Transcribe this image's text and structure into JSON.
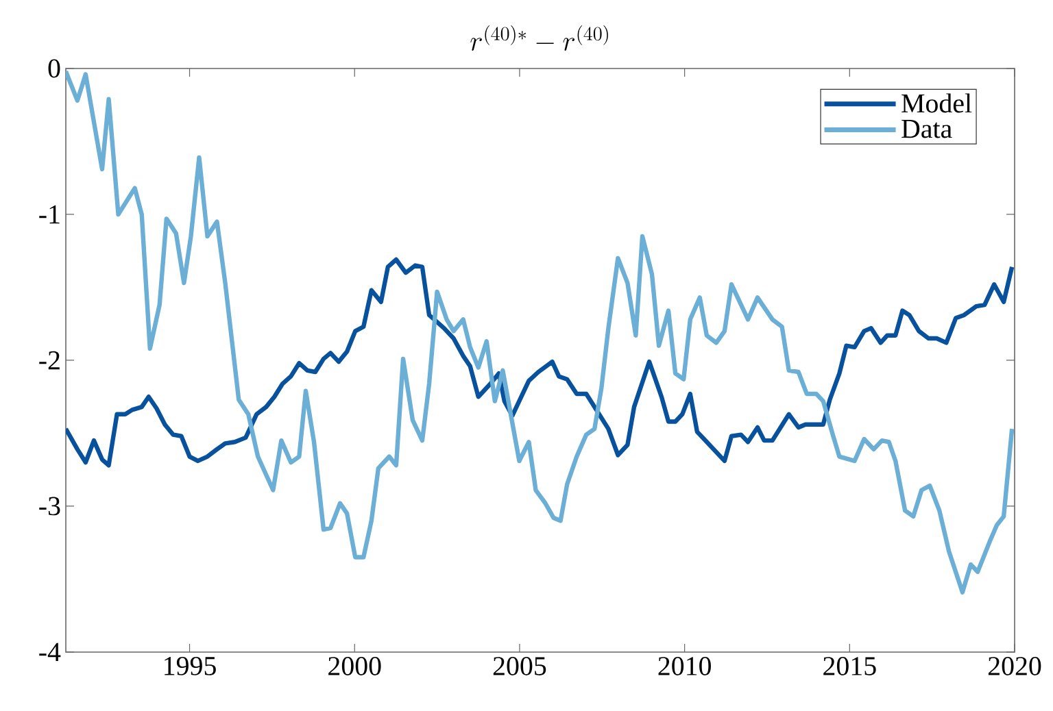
{
  "chart_data": {
    "type": "line",
    "title": "r^{(40)*} - r^{(40)}",
    "xlim": [
      1991.25,
      2020
    ],
    "ylim": [
      -4,
      0
    ],
    "xticks": [
      1995,
      2000,
      2005,
      2010,
      2015,
      2020
    ],
    "yticks": [
      -4,
      -3,
      -2,
      -1,
      0
    ],
    "grid": false,
    "legend": "top right",
    "marker": "none",
    "line_style": "solid",
    "series": [
      {
        "name": "Model",
        "color": "#08519c",
        "x": [
          1991.25,
          1991.6,
          1991.85,
          1992.1,
          1992.35,
          1992.55,
          1992.8,
          1993.05,
          1993.26,
          1993.55,
          1993.76,
          1994.0,
          1994.25,
          1994.5,
          1994.75,
          1995.0,
          1995.25,
          1995.54,
          1995.83,
          1996.08,
          1996.37,
          1996.7,
          1997.03,
          1997.32,
          1997.57,
          1997.82,
          1998.07,
          1998.32,
          1998.57,
          1998.81,
          1999.06,
          1999.27,
          1999.52,
          1999.77,
          2000.02,
          2000.27,
          2000.51,
          2000.8,
          2001.01,
          2001.26,
          2001.55,
          2001.84,
          2002.05,
          2002.26,
          2002.71,
          2003.0,
          2003.29,
          2003.5,
          2003.75,
          2004.12,
          2004.37,
          2004.54,
          2004.78,
          2005.28,
          2005.57,
          2005.99,
          2006.19,
          2006.44,
          2006.73,
          2007.02,
          2007.44,
          2007.69,
          2007.98,
          2008.27,
          2008.47,
          2008.93,
          2009.3,
          2009.51,
          2009.72,
          2009.93,
          2010.17,
          2010.38,
          2010.59,
          2011.21,
          2011.42,
          2011.71,
          2011.92,
          2012.21,
          2012.41,
          2012.66,
          2013.16,
          2013.45,
          2013.66,
          2014.2,
          2014.4,
          2014.69,
          2014.9,
          2015.15,
          2015.44,
          2015.65,
          2015.94,
          2016.14,
          2016.39,
          2016.6,
          2016.81,
          2017.1,
          2017.39,
          2017.64,
          2017.93,
          2018.22,
          2018.47,
          2018.84,
          2019.09,
          2019.38,
          2019.67,
          2019.92
        ],
        "values": [
          -2.47,
          -2.61,
          -2.7,
          -2.55,
          -2.68,
          -2.72,
          -2.37,
          -2.37,
          -2.34,
          -2.32,
          -2.25,
          -2.33,
          -2.44,
          -2.51,
          -2.52,
          -2.66,
          -2.69,
          -2.66,
          -2.61,
          -2.57,
          -2.56,
          -2.53,
          -2.37,
          -2.32,
          -2.25,
          -2.16,
          -2.11,
          -2.02,
          -2.07,
          -2.08,
          -1.99,
          -1.95,
          -2.01,
          -1.94,
          -1.8,
          -1.77,
          -1.52,
          -1.6,
          -1.36,
          -1.31,
          -1.4,
          -1.35,
          -1.36,
          -1.69,
          -1.78,
          -1.85,
          -1.97,
          -2.04,
          -2.25,
          -2.16,
          -2.09,
          -2.28,
          -2.38,
          -2.14,
          -2.08,
          -2.01,
          -2.11,
          -2.13,
          -2.23,
          -2.23,
          -2.38,
          -2.47,
          -2.65,
          -2.58,
          -2.32,
          -2.01,
          -2.25,
          -2.42,
          -2.42,
          -2.37,
          -2.23,
          -2.49,
          -2.54,
          -2.69,
          -2.52,
          -2.51,
          -2.56,
          -2.46,
          -2.55,
          -2.55,
          -2.37,
          -2.46,
          -2.44,
          -2.44,
          -2.27,
          -2.09,
          -1.9,
          -1.91,
          -1.8,
          -1.78,
          -1.88,
          -1.83,
          -1.83,
          -1.66,
          -1.69,
          -1.8,
          -1.85,
          -1.85,
          -1.88,
          -1.71,
          -1.69,
          -1.63,
          -1.62,
          -1.48,
          -1.6,
          -1.36
        ]
      },
      {
        "name": "Data",
        "color": "#6baed6",
        "x": [
          1991.25,
          1991.6,
          1991.85,
          1992.35,
          1992.55,
          1992.84,
          1993.34,
          1993.55,
          1993.8,
          1994.09,
          1994.3,
          1994.59,
          1994.83,
          1995.04,
          1995.29,
          1995.54,
          1995.83,
          1996.08,
          1996.49,
          1996.78,
          1997.07,
          1997.53,
          1997.78,
          1998.07,
          1998.32,
          1998.52,
          1998.77,
          1999.06,
          1999.27,
          1999.56,
          1999.77,
          2000.02,
          2000.27,
          2000.51,
          2000.72,
          2001.05,
          2001.26,
          2001.47,
          2001.76,
          2002.05,
          2002.26,
          2002.5,
          2002.79,
          2003.0,
          2003.29,
          2003.5,
          2003.75,
          2004.0,
          2004.25,
          2004.49,
          2004.74,
          2004.99,
          2005.28,
          2005.49,
          2005.78,
          2006.03,
          2006.24,
          2006.44,
          2006.73,
          2007.02,
          2007.27,
          2007.48,
          2007.69,
          2007.98,
          2008.27,
          2008.52,
          2008.72,
          2009.01,
          2009.22,
          2009.51,
          2009.72,
          2009.97,
          2010.17,
          2010.46,
          2010.67,
          2010.96,
          2011.21,
          2011.42,
          2011.92,
          2012.21,
          2012.66,
          2012.95,
          2013.16,
          2013.45,
          2013.7,
          2013.99,
          2014.2,
          2014.49,
          2014.69,
          2015.15,
          2015.44,
          2015.73,
          2015.98,
          2016.19,
          2016.39,
          2016.68,
          2016.93,
          2017.18,
          2017.43,
          2017.72,
          2018.01,
          2018.42,
          2018.67,
          2018.88,
          2019.25,
          2019.46,
          2019.67,
          2019.92
        ],
        "values": [
          -0.02,
          -0.22,
          -0.04,
          -0.69,
          -0.21,
          -1.0,
          -0.82,
          -1.0,
          -1.92,
          -1.62,
          -1.03,
          -1.13,
          -1.47,
          -1.15,
          -0.61,
          -1.15,
          -1.05,
          -1.47,
          -2.27,
          -2.37,
          -2.66,
          -2.89,
          -2.55,
          -2.7,
          -2.66,
          -2.21,
          -2.56,
          -3.16,
          -3.15,
          -2.98,
          -3.05,
          -3.35,
          -3.35,
          -3.1,
          -2.74,
          -2.66,
          -2.72,
          -1.99,
          -2.41,
          -2.55,
          -2.16,
          -1.53,
          -1.72,
          -1.8,
          -1.72,
          -1.91,
          -2.05,
          -1.87,
          -2.28,
          -2.07,
          -2.38,
          -2.69,
          -2.56,
          -2.89,
          -2.98,
          -3.08,
          -3.1,
          -2.85,
          -2.66,
          -2.51,
          -2.47,
          -2.19,
          -1.78,
          -1.3,
          -1.47,
          -1.83,
          -1.15,
          -1.41,
          -1.9,
          -1.66,
          -2.09,
          -2.13,
          -1.72,
          -1.57,
          -1.83,
          -1.88,
          -1.8,
          -1.48,
          -1.72,
          -1.57,
          -1.72,
          -1.77,
          -2.07,
          -2.08,
          -2.23,
          -2.23,
          -2.28,
          -2.51,
          -2.66,
          -2.69,
          -2.54,
          -2.61,
          -2.55,
          -2.56,
          -2.69,
          -3.03,
          -3.07,
          -2.89,
          -2.86,
          -3.03,
          -3.31,
          -3.59,
          -3.4,
          -3.45,
          -3.24,
          -3.13,
          -3.07,
          -2.47
        ]
      }
    ]
  }
}
